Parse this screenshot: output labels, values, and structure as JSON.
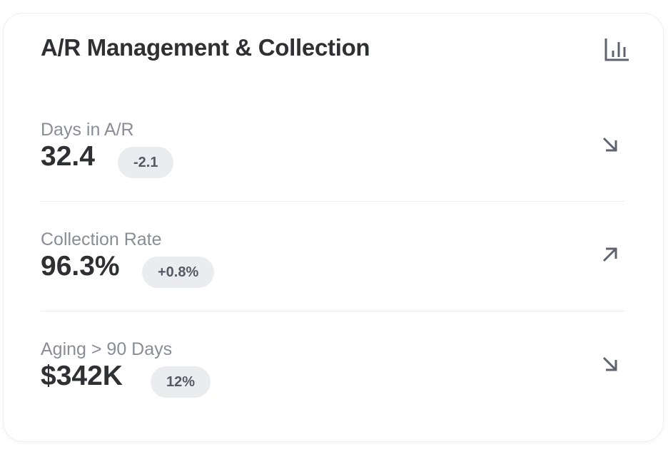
{
  "card": {
    "title": "A/R Management & Collection",
    "header_icon": "bar-chart-icon",
    "metrics": [
      {
        "label": "Days in A/R",
        "value": "32.4",
        "badge": "-2.1",
        "trend_icon": "arrow-down-right-icon"
      },
      {
        "label": "Collection Rate",
        "value": "96.3%",
        "badge": "+0.8%",
        "trend_icon": "arrow-up-right-icon"
      },
      {
        "label": "Aging > 90 Days",
        "value": "$342K",
        "badge": "12%",
        "trend_icon": "arrow-down-right-icon"
      }
    ]
  },
  "colors": {
    "text": "#2f3033",
    "muted": "#8a8d96",
    "badge_bg": "#ebecef",
    "icon": "#5f6370"
  }
}
